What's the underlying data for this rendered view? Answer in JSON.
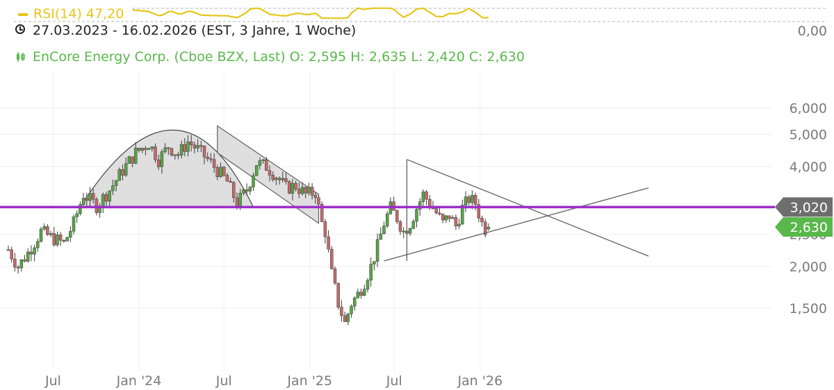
{
  "header": {
    "rsi_label": "RSI(14) 47,20",
    "range_label": "27.03.2023 - 16.02.2026   (EST, 3 Jahre, 1 Woche)",
    "rsi_axis_value": "0,00",
    "instrument_label": "EnCore Energy Corp. (Cboe BZX, Last)  O: 2,595   H: 2,635   L: 2,420   C: 2,630"
  },
  "colors": {
    "up": "#58a447",
    "down": "#c26a6a",
    "rsi": "#e6c619",
    "resistance": "#9b2fc9",
    "last_price_tag": "#58b84a",
    "level_tag": "#6e6e6e",
    "pattern_fill": "#d9d9d9",
    "trendline": "#606060"
  },
  "chart_data": {
    "type": "candlestick",
    "x_unit": "weeks since 27.03.2023",
    "y_scale": "log",
    "ylim": [
      1.2,
      7.0
    ],
    "y_ticks": [
      {
        "value": 1.5,
        "label": "1,500"
      },
      {
        "value": 2.0,
        "label": "2,000"
      },
      {
        "value": 2.5,
        "label": "2,500"
      },
      {
        "value": 3.0,
        "label": "3,000"
      },
      {
        "value": 4.0,
        "label": "4,000"
      },
      {
        "value": 5.0,
        "label": "5,000"
      },
      {
        "value": 6.0,
        "label": "6,000"
      }
    ],
    "x_ticks": [
      {
        "label": "Jul",
        "date": "2023-07-01"
      },
      {
        "label": "Jan '24",
        "date": "2024-01-01"
      },
      {
        "label": "Jul",
        "date": "2024-07-01"
      },
      {
        "label": "Jan '25",
        "date": "2025-01-01"
      },
      {
        "label": "Jul",
        "date": "2025-07-01"
      },
      {
        "label": "Jan '26",
        "date": "2026-01-01"
      }
    ],
    "x_range": {
      "start": "2023-03-27",
      "end": "2026-02-16"
    },
    "ohlc": {
      "O": 2.595,
      "H": 2.635,
      "L": 2.42,
      "C": 2.63
    },
    "last_price": {
      "value": 2.63,
      "label": "2,630"
    },
    "resistance_level": {
      "value": 3.02,
      "label": "3,020"
    },
    "close_path": [
      [
        0,
        2.25
      ],
      [
        3,
        2.0
      ],
      [
        6,
        2.2
      ],
      [
        10,
        2.55
      ],
      [
        13,
        2.45
      ],
      [
        17,
        2.35
      ],
      [
        20,
        2.7
      ],
      [
        23,
        3.3
      ],
      [
        27,
        3.05
      ],
      [
        31,
        3.4
      ],
      [
        35,
        3.9
      ],
      [
        39,
        4.4
      ],
      [
        43,
        4.7
      ],
      [
        46,
        4.2
      ],
      [
        49,
        4.6
      ],
      [
        52,
        4.35
      ],
      [
        55,
        4.75
      ],
      [
        58,
        4.5
      ],
      [
        61,
        4.2
      ],
      [
        64,
        3.9
      ],
      [
        67,
        3.6
      ],
      [
        70,
        3.1
      ],
      [
        73,
        3.4
      ],
      [
        76,
        4.1
      ],
      [
        79,
        4.0
      ],
      [
        82,
        3.75
      ],
      [
        85,
        3.45
      ],
      [
        88,
        3.5
      ],
      [
        91,
        3.3
      ],
      [
        94,
        3.35
      ],
      [
        96,
        2.7
      ],
      [
        97,
        2.55
      ],
      [
        99,
        1.9
      ],
      [
        101,
        1.55
      ],
      [
        103,
        1.35
      ],
      [
        105,
        1.55
      ],
      [
        107,
        1.65
      ],
      [
        109,
        1.8
      ],
      [
        111,
        2.0
      ],
      [
        113,
        2.3
      ],
      [
        115,
        2.7
      ],
      [
        117,
        3.0
      ],
      [
        119,
        2.8
      ],
      [
        121,
        2.55
      ],
      [
        123,
        2.7
      ],
      [
        125,
        3.0
      ],
      [
        127,
        3.3
      ],
      [
        129,
        3.1
      ],
      [
        131,
        2.9
      ],
      [
        133,
        2.7
      ],
      [
        135,
        2.85
      ],
      [
        137,
        2.65
      ],
      [
        139,
        3.0
      ],
      [
        141,
        3.2
      ],
      [
        143,
        3.1
      ],
      [
        145,
        2.7
      ],
      [
        146,
        2.6
      ],
      [
        147,
        2.63
      ]
    ],
    "rsi": {
      "label": "RSI(14)",
      "value": 47.2
    },
    "annotations": [
      {
        "type": "rounding-top",
        "from": [
          22,
          3.02
        ],
        "peak": [
          52,
          5.15
        ],
        "to": [
          75,
          3.02
        ]
      },
      {
        "type": "channel",
        "upper": [
          [
            64,
            5.3
          ],
          [
            95,
            3.3
          ]
        ],
        "lower": [
          [
            64,
            4.4
          ],
          [
            95,
            2.7
          ]
        ]
      },
      {
        "type": "triangle",
        "upper": [
          [
            122,
            4.2
          ],
          [
            196,
            2.15
          ]
        ],
        "lower": [
          [
            115,
            2.08
          ],
          [
            196,
            3.45
          ]
        ],
        "vertical": [
          122,
          2.08,
          4.2
        ]
      },
      {
        "type": "horizontal",
        "value": 3.02
      }
    ]
  }
}
